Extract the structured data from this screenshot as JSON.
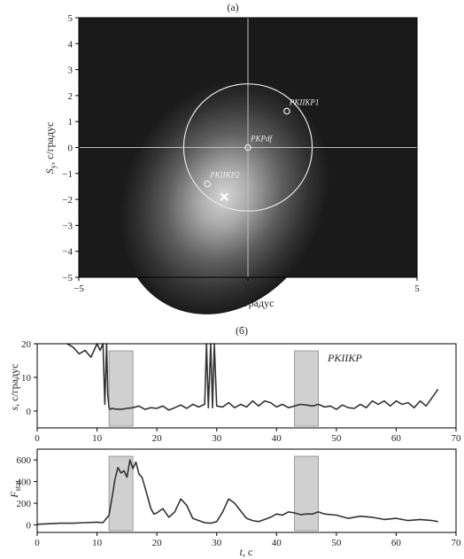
{
  "chart_data": [
    {
      "type": "heatmap",
      "panel_label": "(а)",
      "xlabel": "S_x, с/градус",
      "ylabel": "S_y, с/градус",
      "xlim": [
        -5,
        5
      ],
      "ylim": [
        -5,
        5
      ],
      "xticks": [
        "−5",
        "0",
        "5"
      ],
      "yticks": [
        "−5",
        "−4",
        "−3",
        "−2",
        "−1",
        "0",
        "1",
        "2",
        "3",
        "4",
        "5"
      ],
      "colors": {
        "background": "#1a1a1a",
        "peak": "#d4d4d4",
        "circle": "#e6e6e6"
      },
      "field_peak": {
        "x": -0.7,
        "y": -1.9
      },
      "circle": {
        "cx": 0,
        "cy": 0,
        "r": 1.9
      },
      "points": [
        {
          "name": "PKIIKP1",
          "x": 1.15,
          "y": 1.4
        },
        {
          "name": "PKPdf",
          "x": 0,
          "y": 0
        },
        {
          "name": "PKIIKP2",
          "x": -1.2,
          "y": -1.4
        }
      ],
      "max_marker": {
        "x": -0.7,
        "y": -1.9
      }
    },
    {
      "type": "line",
      "panel_label": "(б)",
      "series_label": "PKIIKP",
      "ylabel": "s, с/градус",
      "xlim": [
        0,
        70
      ],
      "ylim": [
        -5,
        20
      ],
      "xticks": [
        0,
        10,
        20,
        30,
        40,
        50,
        60,
        70
      ],
      "yticks": [
        0,
        10,
        20
      ],
      "shaded_x": [
        [
          12,
          16
        ],
        [
          43,
          47
        ]
      ],
      "x": [
        5,
        6,
        7,
        8,
        9,
        10,
        10.5,
        11,
        11.3,
        11.6,
        11.8,
        12,
        12.2,
        12.5,
        13,
        14,
        15,
        16,
        17,
        18,
        19,
        20,
        21,
        22,
        23,
        24,
        25,
        26,
        27,
        28,
        28.3,
        28.6,
        29,
        29.3,
        29.6,
        30,
        31,
        32,
        33,
        34,
        35,
        36,
        37,
        38,
        39,
        40,
        41,
        42,
        43,
        44,
        45,
        46,
        47,
        48,
        49,
        50,
        51,
        52,
        53,
        54,
        55,
        56,
        57,
        58,
        59,
        60,
        61,
        62,
        63,
        64,
        65,
        66,
        67
      ],
      "y": [
        20,
        19,
        17,
        18,
        16,
        20,
        18,
        25,
        2,
        25,
        5,
        1,
        0.5,
        0.8,
        0.6,
        0.5,
        0.8,
        1,
        1.5,
        0.5,
        1,
        0.8,
        1.5,
        0.3,
        1,
        1.8,
        0.8,
        2,
        1.2,
        2,
        25,
        1,
        25,
        1,
        25,
        1.5,
        1.2,
        2.5,
        1,
        2,
        1.2,
        3,
        1.5,
        3,
        2.5,
        1.2,
        2,
        1,
        1.5,
        2,
        1.8,
        1.5,
        2,
        1.2,
        1.5,
        0.5,
        1.8,
        1,
        0.8,
        2,
        1,
        3,
        2,
        3,
        1.5,
        3,
        2,
        2.5,
        1,
        3,
        1.5,
        4,
        6.5
      ]
    },
    {
      "type": "line",
      "ylabel": "F_stat",
      "xlabel": "t, с",
      "xlim": [
        0,
        70
      ],
      "ylim": [
        -70,
        700
      ],
      "xticks": [
        0,
        10,
        20,
        30,
        40,
        50,
        60,
        70
      ],
      "yticks": [
        0,
        200,
        400,
        600
      ],
      "shaded_x": [
        [
          12,
          16
        ],
        [
          43,
          47
        ]
      ],
      "x": [
        0,
        2,
        4,
        6,
        8,
        10,
        11,
        12,
        12.5,
        13,
        13.5,
        14,
        14.5,
        15,
        15.5,
        16,
        16.5,
        17,
        17.5,
        18,
        18.5,
        19,
        19.5,
        20,
        21,
        22,
        23,
        24,
        25,
        26,
        27,
        28,
        29,
        30,
        31,
        32,
        33,
        34,
        35,
        36,
        37,
        38,
        39,
        40,
        41,
        42,
        43,
        44,
        45,
        46,
        47,
        48,
        50,
        52,
        54,
        56,
        58,
        60,
        62,
        64,
        66,
        67
      ],
      "y": [
        5,
        10,
        15,
        15,
        20,
        25,
        20,
        90,
        250,
        420,
        530,
        480,
        500,
        440,
        600,
        520,
        580,
        470,
        440,
        350,
        250,
        150,
        100,
        110,
        150,
        70,
        120,
        240,
        180,
        60,
        40,
        20,
        15,
        30,
        120,
        240,
        200,
        130,
        60,
        40,
        30,
        50,
        70,
        100,
        90,
        120,
        110,
        95,
        100,
        100,
        120,
        100,
        90,
        60,
        80,
        70,
        50,
        60,
        40,
        50,
        40,
        30
      ]
    }
  ]
}
